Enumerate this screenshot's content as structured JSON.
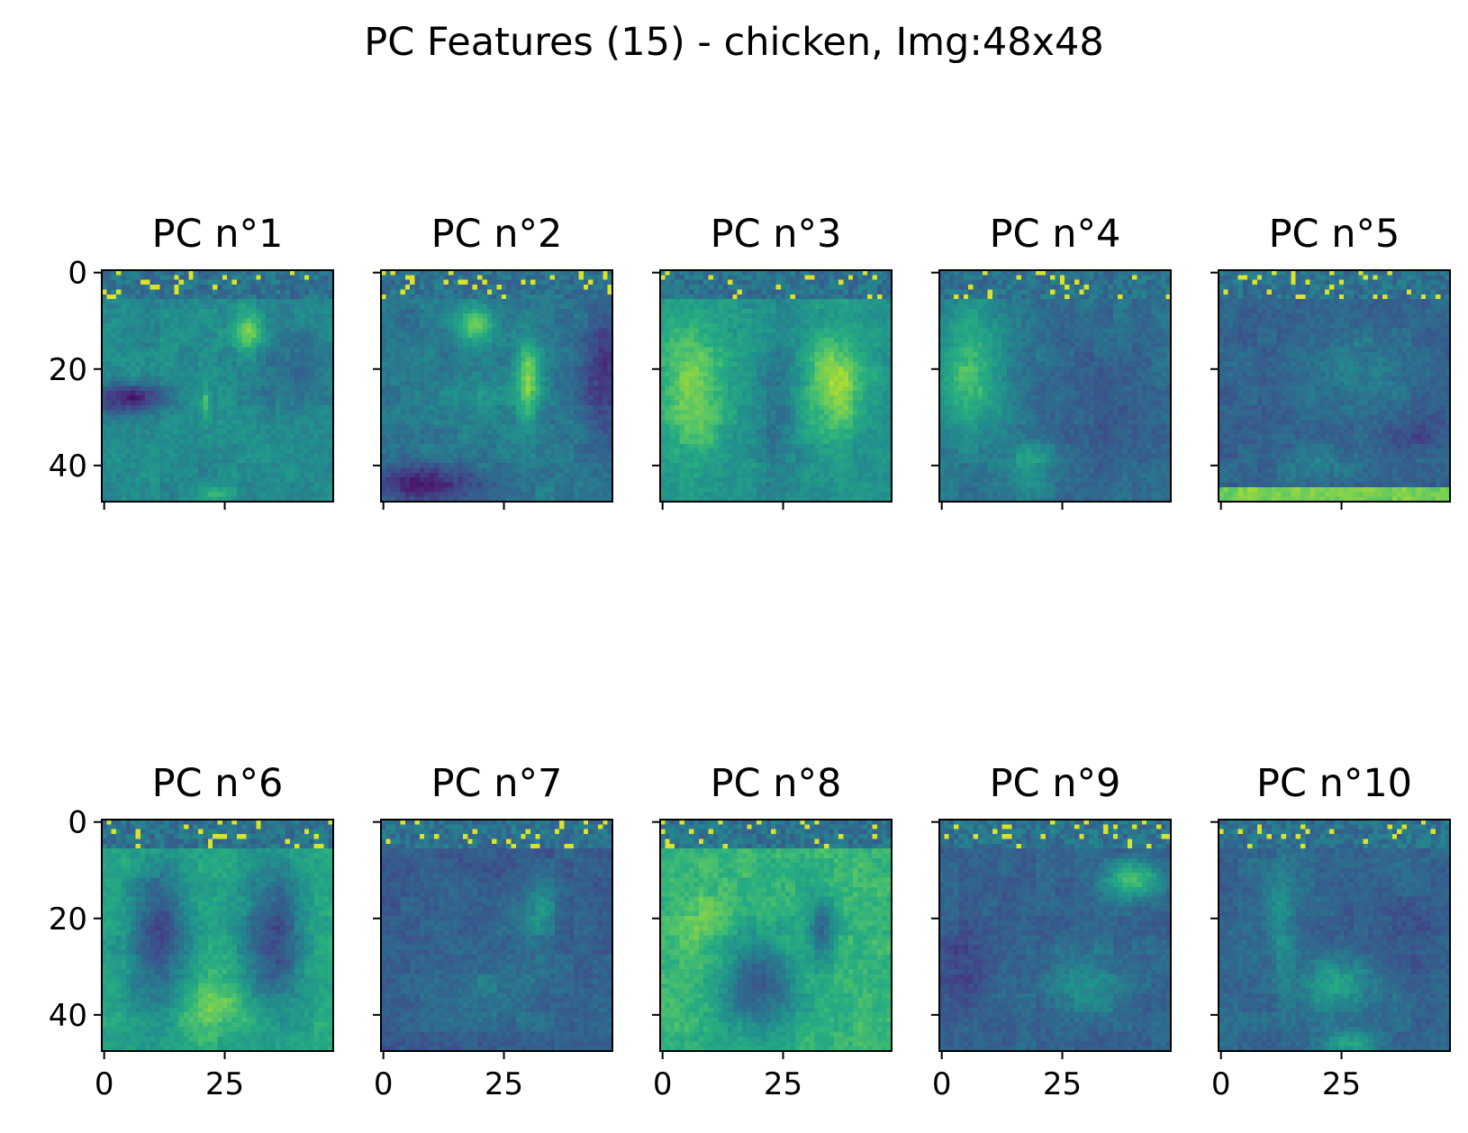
{
  "figure": {
    "title": "PC Features (15) - chicken, Img:48x48"
  },
  "chart_data": {
    "type": "heatmap",
    "title": "PC Features (15) - chicken, Img:48x48",
    "colormap": "viridis",
    "image_size": [
      48,
      48
    ],
    "grid": false,
    "layout": "2 rows x 5 columns, shared axes",
    "xlim": [
      0,
      47
    ],
    "ylim": [
      47,
      0
    ],
    "xticks": [
      0,
      25
    ],
    "yticks": [
      0,
      20,
      40
    ],
    "tick_labels_x": [
      "0",
      "25"
    ],
    "tick_labels_y": [
      "0",
      "20",
      "40"
    ],
    "panels": [
      {
        "title": "PC n°1",
        "description_features": "dark horizontal band on left around rows 22-28, bright blob near row 12 col 30"
      },
      {
        "title": "PC n°2",
        "description_features": "bright patch upper-left-center, bright diagonal stripe center-right, dark bottom-left"
      },
      {
        "title": "PC n°3",
        "description_features": "two bright hen silhouettes left and right"
      },
      {
        "title": "PC n°4",
        "description_features": "bright left strip, darker right region"
      },
      {
        "title": "PC n°5",
        "description_features": "dark upper region, bright bottom band"
      },
      {
        "title": "PC n°6",
        "description_features": "two dark hen silhouettes, bright center bottom"
      },
      {
        "title": "PC n°7",
        "description_features": "mostly dark, mid-level texture"
      },
      {
        "title": "PC n°8",
        "description_features": "bright background, dark rooster silhouette"
      },
      {
        "title": "PC n°9",
        "description_features": "dark background, bright patch upper right"
      },
      {
        "title": "PC n°10",
        "description_features": "dark background, bright patches lower center"
      }
    ]
  }
}
